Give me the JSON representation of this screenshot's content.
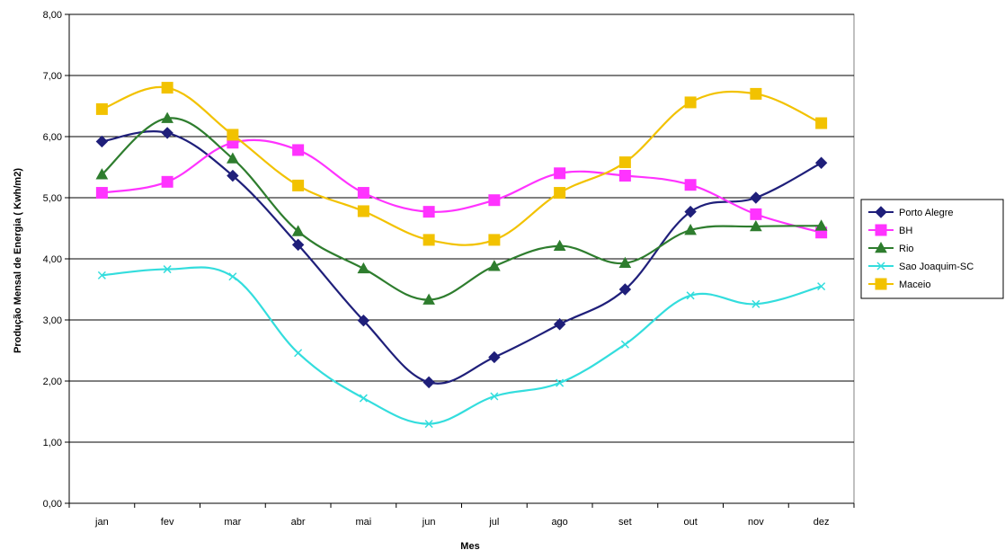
{
  "chart_data": {
    "type": "line",
    "title": "",
    "xlabel": "Mes",
    "ylabel": "Produção Mensal de Energia ( Kwh/m2)",
    "categories": [
      "jan",
      "fev",
      "mar",
      "abr",
      "mai",
      "jun",
      "jul",
      "ago",
      "set",
      "out",
      "nov",
      "dez"
    ],
    "ylim": [
      0,
      8
    ],
    "yticks": [
      0,
      1,
      2,
      3,
      4,
      5,
      6,
      7,
      8
    ],
    "ytick_labels": [
      "0,00",
      "1,00",
      "2,00",
      "3,00",
      "4,00",
      "5,00",
      "6,00",
      "7,00",
      "8,00"
    ],
    "grid": true,
    "legend_position": "right",
    "series": [
      {
        "name": "Porto Alegre",
        "color": "#1f1f7a",
        "marker": "diamond",
        "values": [
          5.92,
          6.06,
          5.36,
          4.23,
          2.99,
          1.98,
          2.39,
          2.93,
          3.5,
          4.77,
          5.0,
          5.57
        ]
      },
      {
        "name": "BH",
        "color": "#ff33ff",
        "marker": "square",
        "values": [
          5.08,
          5.26,
          5.9,
          5.78,
          5.08,
          4.77,
          4.96,
          5.4,
          5.36,
          5.21,
          4.73,
          4.43
        ]
      },
      {
        "name": "Rio",
        "color": "#2e7d2e",
        "marker": "triangle",
        "values": [
          5.38,
          6.3,
          5.64,
          4.45,
          3.84,
          3.33,
          3.88,
          4.21,
          3.93,
          4.47,
          4.53,
          4.54
        ]
      },
      {
        "name": "Sao Joaquim-SC",
        "color": "#33dddd",
        "marker": "cross",
        "values": [
          3.73,
          3.83,
          3.71,
          2.46,
          1.72,
          1.3,
          1.75,
          1.97,
          2.6,
          3.4,
          3.26,
          3.55
        ]
      },
      {
        "name": "Maceio",
        "color": "#f2c200",
        "marker": "square",
        "values": [
          6.45,
          6.8,
          6.03,
          5.2,
          4.78,
          4.31,
          4.31,
          5.08,
          5.58,
          6.56,
          6.7,
          6.22
        ]
      }
    ]
  }
}
